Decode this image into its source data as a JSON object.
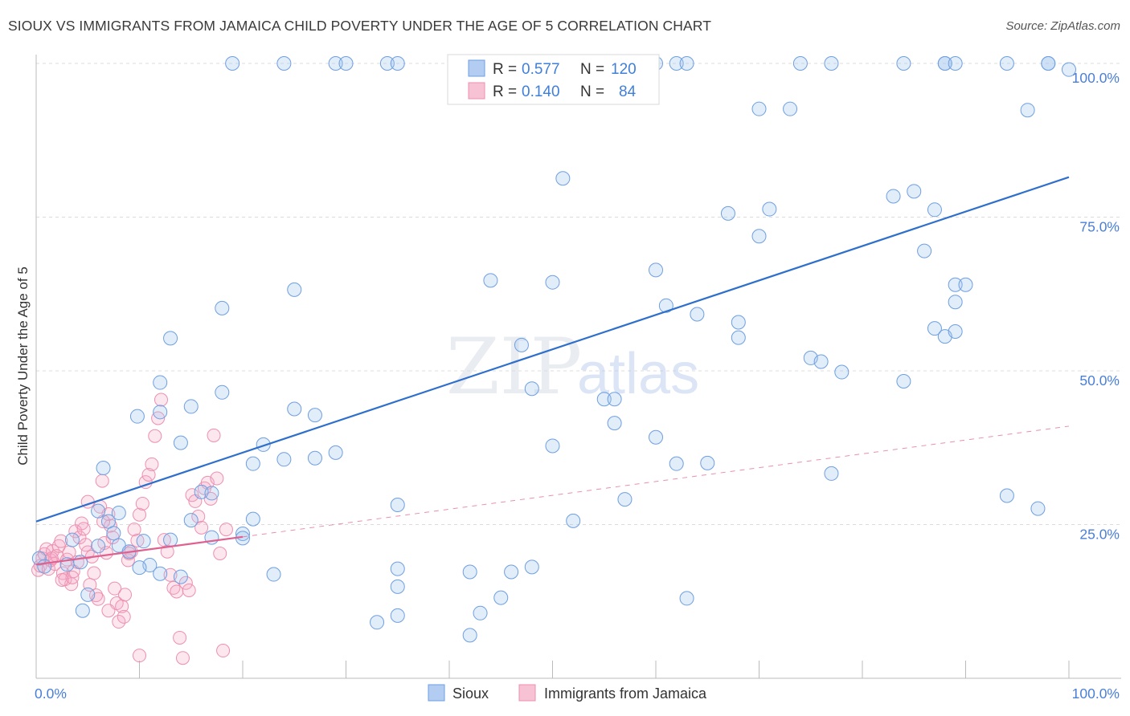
{
  "title": "SIOUX VS IMMIGRANTS FROM JAMAICA CHILD POVERTY UNDER THE AGE OF 5 CORRELATION CHART",
  "source": "Source: ZipAtlas.com",
  "watermark": {
    "zip": "ZIP",
    "atlas": "atlas"
  },
  "chart_data": {
    "type": "scatter",
    "title": "SIOUX VS IMMIGRANTS FROM JAMAICA CHILD POVERTY UNDER THE AGE OF 5 CORRELATION CHART",
    "xlabel": "",
    "ylabel": "Child Poverty Under the Age of 5",
    "xlim": [
      0,
      100
    ],
    "ylim": [
      0,
      100
    ],
    "x_tick_labels": [
      "0.0%",
      "100.0%"
    ],
    "y_tick_labels": [
      "25.0%",
      "50.0%",
      "75.0%",
      "100.0%"
    ],
    "y_ticks": [
      25,
      50,
      75,
      100
    ],
    "grid": true,
    "legend": {
      "position": "top-center",
      "entries": [
        {
          "r_label": "R =",
          "r_value": "0.577",
          "n_label": "N =",
          "n_value": "120"
        },
        {
          "r_label": "R =",
          "r_value": "0.140",
          "n_label": "N =",
          "n_value": "84"
        }
      ]
    },
    "colors": {
      "sioux": "#6e9fe0",
      "jamaica": "#ee8fae",
      "sioux_line": "#2f6fcc",
      "jamaica_line": "#e0608f",
      "tick": "#4a7fd6"
    },
    "series": [
      {
        "name": "Sioux",
        "trend": {
          "x": [
            0,
            100
          ],
          "y": [
            25.5,
            81.5
          ]
        },
        "points": [
          [
            19,
            100
          ],
          [
            24,
            100
          ],
          [
            29,
            100
          ],
          [
            30,
            100
          ],
          [
            34,
            100
          ],
          [
            35,
            100
          ],
          [
            47,
            100
          ],
          [
            54,
            100
          ],
          [
            60,
            100
          ],
          [
            62,
            100
          ],
          [
            63,
            100
          ],
          [
            74,
            100
          ],
          [
            77,
            100
          ],
          [
            84,
            100
          ],
          [
            88,
            100
          ],
          [
            88,
            100
          ],
          [
            89,
            100
          ],
          [
            94,
            100
          ],
          [
            98,
            100
          ],
          [
            98,
            100
          ],
          [
            100,
            99
          ],
          [
            70,
            92.6
          ],
          [
            73,
            92.6
          ],
          [
            96,
            92.4
          ],
          [
            51,
            81.3
          ],
          [
            83,
            78.4
          ],
          [
            85,
            79.2
          ],
          [
            87,
            76.2
          ],
          [
            71,
            76.3
          ],
          [
            67,
            75.6
          ],
          [
            70,
            71.9
          ],
          [
            86,
            69.5
          ],
          [
            60,
            66.4
          ],
          [
            44,
            64.7
          ],
          [
            50,
            64.4
          ],
          [
            89,
            64
          ],
          [
            90,
            64
          ],
          [
            25,
            63.2
          ],
          [
            18,
            60.2
          ],
          [
            89,
            61.2
          ],
          [
            61,
            60.6
          ],
          [
            64,
            59.2
          ],
          [
            68,
            57.9
          ],
          [
            68,
            55.4
          ],
          [
            87,
            56.9
          ],
          [
            88,
            55.6
          ],
          [
            89,
            56.4
          ],
          [
            13,
            55.3
          ],
          [
            47,
            54.2
          ],
          [
            75,
            52.1
          ],
          [
            76,
            51.5
          ],
          [
            78,
            49.8
          ],
          [
            84,
            48.3
          ],
          [
            12,
            48.1
          ],
          [
            48,
            47.1
          ],
          [
            18,
            46.5
          ],
          [
            55,
            45.4
          ],
          [
            56,
            45.4
          ],
          [
            9.8,
            42.6
          ],
          [
            12,
            43.3
          ],
          [
            15,
            44.2
          ],
          [
            25,
            43.8
          ],
          [
            27,
            42.8
          ],
          [
            56,
            41.5
          ],
          [
            60,
            39.2
          ],
          [
            14,
            38.3
          ],
          [
            22,
            38
          ],
          [
            50,
            37.8
          ],
          [
            29,
            36.7
          ],
          [
            6.5,
            34.2
          ],
          [
            21,
            34.9
          ],
          [
            24,
            35.6
          ],
          [
            27,
            35.8
          ],
          [
            62,
            34.9
          ],
          [
            65,
            35
          ],
          [
            77,
            33.3
          ],
          [
            16,
            30.3
          ],
          [
            17,
            30.1
          ],
          [
            94,
            29.7
          ],
          [
            97,
            27.6
          ],
          [
            57,
            29.1
          ],
          [
            35,
            28.2
          ],
          [
            8,
            26.9
          ],
          [
            7,
            25.5
          ],
          [
            15,
            25.7
          ],
          [
            21,
            25.9
          ],
          [
            52,
            25.6
          ],
          [
            6,
            27.2
          ],
          [
            20,
            23.5
          ],
          [
            3.5,
            22.5
          ],
          [
            10.4,
            22.3
          ],
          [
            13,
            22.5
          ],
          [
            8,
            21.6
          ],
          [
            17,
            22.9
          ],
          [
            20,
            22.8
          ],
          [
            0.3,
            19.5
          ],
          [
            0.8,
            18.2
          ],
          [
            3,
            18.5
          ],
          [
            6,
            21.5
          ],
          [
            7.5,
            23.6
          ],
          [
            9,
            20.6
          ],
          [
            4.3,
            18.9
          ],
          [
            11,
            18.4
          ],
          [
            12,
            17
          ],
          [
            14,
            16.5
          ],
          [
            10,
            18
          ],
          [
            23,
            16.9
          ],
          [
            42,
            17.3
          ],
          [
            48,
            18.1
          ],
          [
            35,
            14.9
          ],
          [
            45,
            13.1
          ],
          [
            5,
            13.6
          ],
          [
            4.5,
            11
          ],
          [
            33,
            9.1
          ],
          [
            35,
            10.2
          ],
          [
            42,
            7
          ],
          [
            43,
            10.6
          ],
          [
            63,
            13
          ],
          [
            35,
            17.8
          ],
          [
            46,
            17.3
          ]
        ]
      },
      {
        "name": "Immigrants from Jamaica",
        "trend": {
          "x": [
            0,
            100
          ],
          "y": [
            18.5,
            41
          ]
        },
        "trend_solid_until": 20,
        "points": [
          [
            0.2,
            17.6
          ],
          [
            0.4,
            18.3
          ],
          [
            0.6,
            19.5
          ],
          [
            0.8,
            20.2
          ],
          [
            1,
            21
          ],
          [
            1.2,
            17.8
          ],
          [
            1.4,
            19.2
          ],
          [
            1.6,
            20.7
          ],
          [
            1.8,
            18.6
          ],
          [
            2,
            19.9
          ],
          [
            2.2,
            21.5
          ],
          [
            2.4,
            22.3
          ],
          [
            2.6,
            17.1
          ],
          [
            2.8,
            16.1
          ],
          [
            3,
            19.3
          ],
          [
            3.2,
            20.5
          ],
          [
            3.4,
            15.3
          ],
          [
            3.6,
            17.4
          ],
          [
            3.8,
            23.9
          ],
          [
            4,
            18.9
          ],
          [
            4.2,
            22.9
          ],
          [
            4.4,
            25.2
          ],
          [
            4.6,
            24.3
          ],
          [
            4.8,
            21.7
          ],
          [
            5,
            20.5
          ],
          [
            5.2,
            15.2
          ],
          [
            5.4,
            19.8
          ],
          [
            5.6,
            17.1
          ],
          [
            5.8,
            13.5
          ],
          [
            6,
            12.9
          ],
          [
            6.2,
            27.9
          ],
          [
            6.4,
            32.1
          ],
          [
            6.6,
            22
          ],
          [
            6.8,
            20.4
          ],
          [
            7,
            26.7
          ],
          [
            7.2,
            24.8
          ],
          [
            7.4,
            22.9
          ],
          [
            7.6,
            14.6
          ],
          [
            7.8,
            12.2
          ],
          [
            8,
            9.2
          ],
          [
            8.3,
            11.7
          ],
          [
            8.6,
            13.6
          ],
          [
            8.9,
            19.2
          ],
          [
            9.2,
            20.6
          ],
          [
            9.5,
            24.2
          ],
          [
            9.8,
            22.4
          ],
          [
            10,
            26.6
          ],
          [
            10.3,
            28.4
          ],
          [
            10.6,
            31.9
          ],
          [
            10.9,
            33.1
          ],
          [
            11.2,
            34.8
          ],
          [
            11.5,
            39.4
          ],
          [
            11.8,
            42.3
          ],
          [
            12.1,
            45.3
          ],
          [
            12.4,
            22.5
          ],
          [
            12.7,
            20.6
          ],
          [
            13,
            16.8
          ],
          [
            13.3,
            14.7
          ],
          [
            13.6,
            14.1
          ],
          [
            13.9,
            6.6
          ],
          [
            14.2,
            3.3
          ],
          [
            14.5,
            15.5
          ],
          [
            14.8,
            14.3
          ],
          [
            15.1,
            29.8
          ],
          [
            15.4,
            28.8
          ],
          [
            15.7,
            26.3
          ],
          [
            16,
            24.5
          ],
          [
            16.3,
            30.9
          ],
          [
            16.6,
            31.8
          ],
          [
            16.9,
            29.2
          ],
          [
            17.2,
            39.5
          ],
          [
            17.5,
            32.5
          ],
          [
            17.8,
            20.3
          ],
          [
            18.1,
            4.5
          ],
          [
            18.4,
            24.2
          ],
          [
            10,
            3.7
          ],
          [
            8.5,
            10
          ],
          [
            7,
            11
          ],
          [
            5,
            28.7
          ],
          [
            3.5,
            16.4
          ],
          [
            2.5,
            16
          ],
          [
            6.5,
            25.5
          ],
          [
            9,
            20.3
          ],
          [
            1.5,
            19.5
          ]
        ]
      }
    ]
  },
  "bottom_legend": [
    {
      "label": "Sioux"
    },
    {
      "label": "Immigrants from Jamaica"
    }
  ]
}
